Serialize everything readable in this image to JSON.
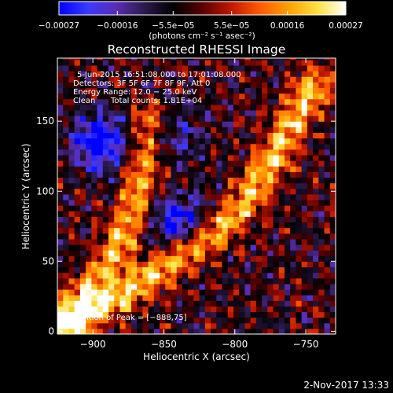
{
  "chart_data": {
    "type": "heatmap",
    "title": "Reconstructed RHESSI Image",
    "xlabel": "Heliocentric X (arcsec)",
    "ylabel": "Heliocentric Y (arcsec)",
    "xlim": [
      -925,
      -729
    ],
    "ylim": [
      -2,
      195
    ],
    "x_ticks": [
      -900,
      -850,
      -800,
      -750
    ],
    "x_tick_labels": [
      "−900",
      "−850",
      "−800",
      "−750"
    ],
    "y_ticks": [
      0,
      50,
      100,
      150
    ],
    "y_tick_labels": [
      "0",
      "50",
      "100",
      "150"
    ],
    "grid": false,
    "colorbar": {
      "range": [
        -0.00027,
        0.00027
      ],
      "ticks": [
        -0.00027,
        -0.00016,
        -5.5e-05,
        5.5e-05,
        0.00016,
        0.00027
      ],
      "tick_labels": [
        "−0.00027",
        "−0.00016",
        "−5.5e−05",
        "5.5e−05",
        "0.00016",
        "0.00027"
      ],
      "units": "(photons cm⁻² s⁻¹ asec⁻²)",
      "colormap": [
        "#0000ff",
        "#3a3aff",
        "#5a2cb4",
        "#2a1a4a",
        "#000000",
        "#5a0000",
        "#c01800",
        "#ff5a00",
        "#ffa000",
        "#ffe040",
        "#ffffff"
      ]
    },
    "annotations": {
      "time": "5‑Jun‑2015 16:51:08.000 to 17:01:08.000",
      "detectors": "Detectors: 3F 5F 6F 7F 8F 9F, Att 0",
      "energy": "Energy Range: 12.0 − 25.0 keV",
      "clean": "Clean",
      "total_counts": "Total counts: 1.81E+04",
      "peak": "Position of Peak = [−888,75]"
    },
    "peak_position": [
      -888,
      75
    ],
    "features": [
      {
        "kind": "positive-arc",
        "path": [
          [
            -920,
            10
          ],
          [
            -895,
            40
          ],
          [
            -875,
            75
          ],
          [
            -865,
            110
          ],
          [
            -860,
            150
          ]
        ],
        "value": 0.00022
      },
      {
        "kind": "positive-arc",
        "path": [
          [
            -915,
            5
          ],
          [
            -880,
            25
          ],
          [
            -845,
            50
          ],
          [
            -810,
            75
          ],
          [
            -790,
            95
          ],
          [
            -770,
            130
          ],
          [
            -745,
            175
          ]
        ],
        "value": 0.00024
      },
      {
        "kind": "negative-region",
        "center": [
          -895,
          135
        ],
        "value": -0.00027
      },
      {
        "kind": "negative-region",
        "center": [
          -840,
          78
        ],
        "value": -0.00022
      },
      {
        "kind": "negative-region",
        "center": [
          -845,
          140
        ],
        "value": -0.00012
      }
    ]
  },
  "footer": {
    "date": "2‑Nov‑2017 13:33"
  }
}
